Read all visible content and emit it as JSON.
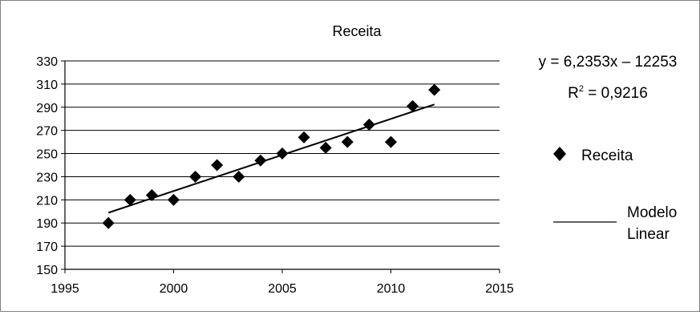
{
  "chart_data": {
    "type": "scatter",
    "title": "Receita",
    "xlim": [
      1995,
      2015
    ],
    "ylim": [
      150,
      330
    ],
    "x_ticks": [
      1995,
      2000,
      2005,
      2010,
      2015
    ],
    "y_ticks": [
      150,
      170,
      190,
      210,
      230,
      250,
      270,
      290,
      310,
      330
    ],
    "grid": "horizontal",
    "legend_position": "right",
    "series": [
      {
        "name": "Receita",
        "marker": "diamond",
        "color": "#000000",
        "x": [
          1997,
          1998,
          1999,
          2000,
          2001,
          2002,
          2003,
          2004,
          2005,
          2006,
          2007,
          2008,
          2009,
          2010,
          2011,
          2012
        ],
        "y": [
          190,
          210,
          214,
          210,
          230,
          240,
          230,
          244,
          250,
          264,
          255,
          260,
          275,
          260,
          291,
          305
        ]
      }
    ],
    "trendline": {
      "name": "Modelo Linear",
      "name_line1": "Modelo",
      "name_line2": "Linear",
      "slope": 6.2353,
      "intercept": -12253,
      "x_range": [
        1997,
        2012
      ],
      "equation_text": "y = 6,2353x – 12253",
      "r2_label": "R",
      "r2_sup": "2",
      "r2_value": " = 0,9216"
    }
  }
}
